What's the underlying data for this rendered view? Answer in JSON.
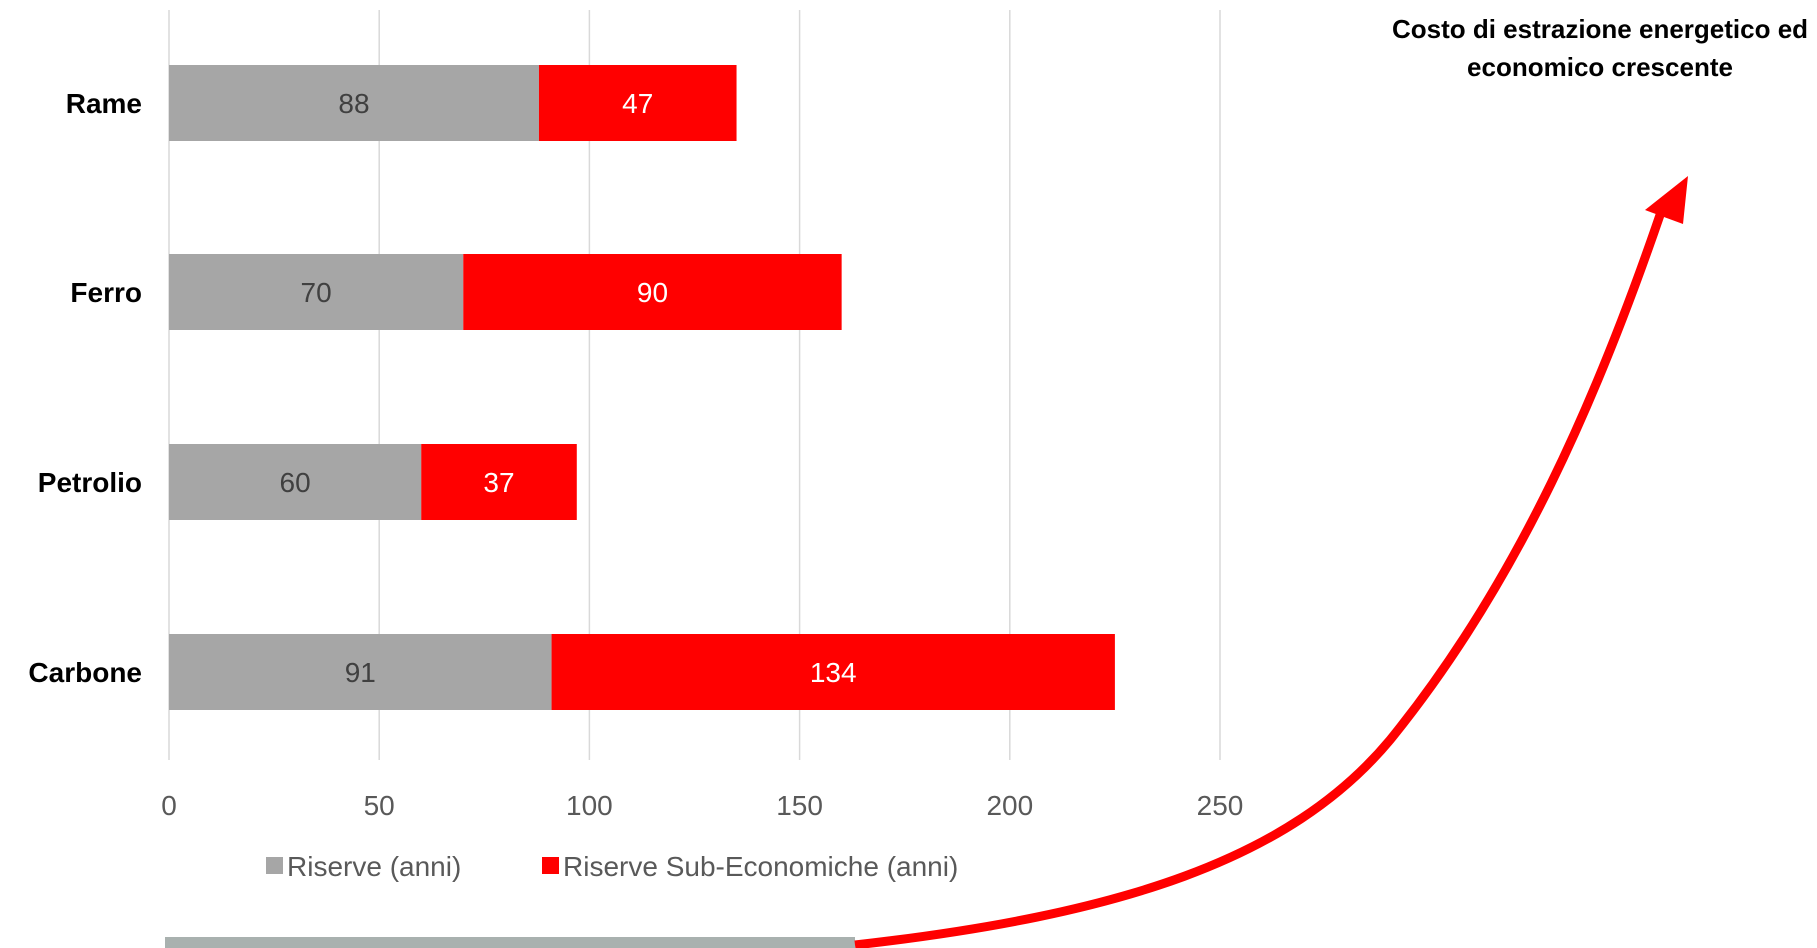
{
  "chart_data": {
    "type": "bar",
    "orientation": "horizontal",
    "stacked": true,
    "categories": [
      "Rame",
      "Ferro",
      "Petrolio",
      "Carbone"
    ],
    "series": [
      {
        "name": "Riserve (anni)",
        "values": [
          88,
          70,
          60,
          91
        ],
        "color": "#a6a6a6",
        "label_color": "#404040"
      },
      {
        "name": "Riserve Sub-Economiche (anni)",
        "values": [
          47,
          90,
          37,
          134
        ],
        "color": "#ff0000",
        "label_color": "#ffffff"
      }
    ],
    "xlim": [
      0,
      250
    ],
    "x_ticks": [
      "0",
      "50",
      "100",
      "150",
      "200",
      "250"
    ],
    "grid": "vertical",
    "legend": "bottom",
    "annotation": "Costo di estrazione energetico ed economico crescente",
    "annotation_arrow_color": "#ff0000"
  }
}
